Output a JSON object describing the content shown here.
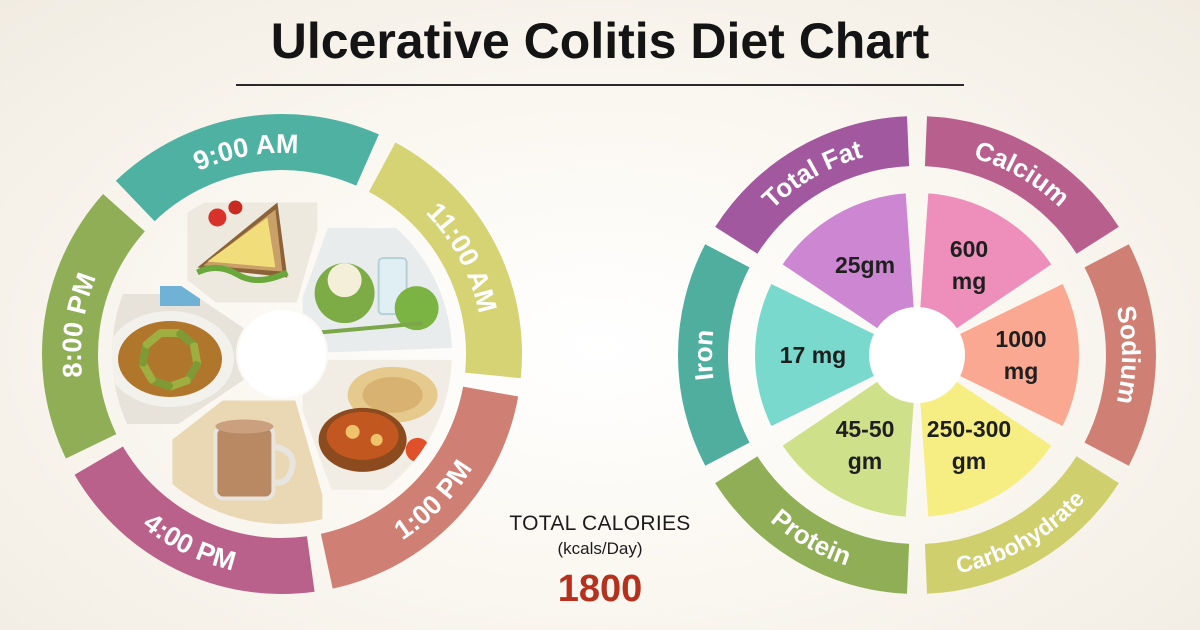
{
  "title": "Ulcerative Colitis Diet Chart",
  "meal_wheel": {
    "times": [
      {
        "label": "9:00 AM",
        "color": "#4fb1a1"
      },
      {
        "label": "11:00 AM",
        "color": "#d6d374"
      },
      {
        "label": "1:00 PM",
        "color": "#cf7f73"
      },
      {
        "label": "4:00 PM",
        "color": "#b9618a"
      },
      {
        "label": "8:00 PM",
        "color": "#8fae56"
      }
    ],
    "foods": [
      {
        "name": "sandwich-icon"
      },
      {
        "name": "coconut-water-icon"
      },
      {
        "name": "curry-and-roti-icon"
      },
      {
        "name": "tea-mug-icon"
      },
      {
        "name": "vegetable-stir-fry-icon"
      }
    ]
  },
  "calories": {
    "label": "TOTAL CALORIES",
    "unit": "(kcals/Day)",
    "value": "1800"
  },
  "nutrient_wheel": {
    "nutrients": [
      {
        "name": "Total Fat",
        "value_lines": [
          "25gm"
        ],
        "ring_color": "#a1589f",
        "fill_color": "#cd86d2"
      },
      {
        "name": "Calcium",
        "value_lines": [
          "600",
          "mg"
        ],
        "ring_color": "#b95f8e",
        "fill_color": "#ee8ebb"
      },
      {
        "name": "Sodium",
        "value_lines": [
          "1000",
          "mg"
        ],
        "ring_color": "#cf7f73",
        "fill_color": "#fba892"
      },
      {
        "name": "Carbohydrate",
        "value_lines": [
          "250-300",
          "gm"
        ],
        "ring_color": "#d0cf6e",
        "fill_color": "#f6ee82"
      },
      {
        "name": "Protein",
        "value_lines": [
          "45-50",
          "gm"
        ],
        "ring_color": "#8fae56",
        "fill_color": "#cfe08b"
      },
      {
        "name": "Iron",
        "value_lines": [
          "17 mg"
        ],
        "ring_color": "#4fae9e",
        "fill_color": "#7ad9cd"
      }
    ]
  }
}
